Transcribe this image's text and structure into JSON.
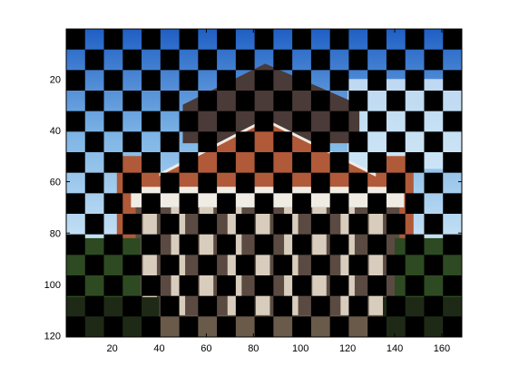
{
  "chart_data": {
    "type": "heatmap",
    "title": "",
    "xlabel": "",
    "ylabel": "",
    "xlim": [
      0.5,
      168.5
    ],
    "ylim": [
      0.5,
      120.5
    ],
    "y_reversed": true,
    "checker_square_size": 8,
    "checker_color": "#000000",
    "x_ticks": [
      {
        "value": 20,
        "label": "20"
      },
      {
        "value": 40,
        "label": "40"
      },
      {
        "value": 60,
        "label": "60"
      },
      {
        "value": 80,
        "label": "80"
      },
      {
        "value": 100,
        "label": "100"
      },
      {
        "value": 120,
        "label": "120"
      },
      {
        "value": 140,
        "label": "140"
      },
      {
        "value": 160,
        "label": "160"
      }
    ],
    "y_ticks": [
      {
        "value": 20,
        "label": "20"
      },
      {
        "value": 40,
        "label": "40"
      },
      {
        "value": 60,
        "label": "60"
      },
      {
        "value": 80,
        "label": "80"
      },
      {
        "value": 100,
        "label": "100"
      },
      {
        "value": 120,
        "label": "120"
      }
    ],
    "image_colors": {
      "sky_blue": "#1f5fc4",
      "sky_light": "#c9e3f5",
      "roof_dark": "#4a3a38",
      "brick": "#b05a3a",
      "trim_white": "#f0ece4",
      "column_light": "#d8ccbc",
      "shadow": "#5a4a42",
      "tree_green": "#2e4a22",
      "tree_dark": "#1e2a16",
      "ground": "#6a5a4a"
    }
  }
}
